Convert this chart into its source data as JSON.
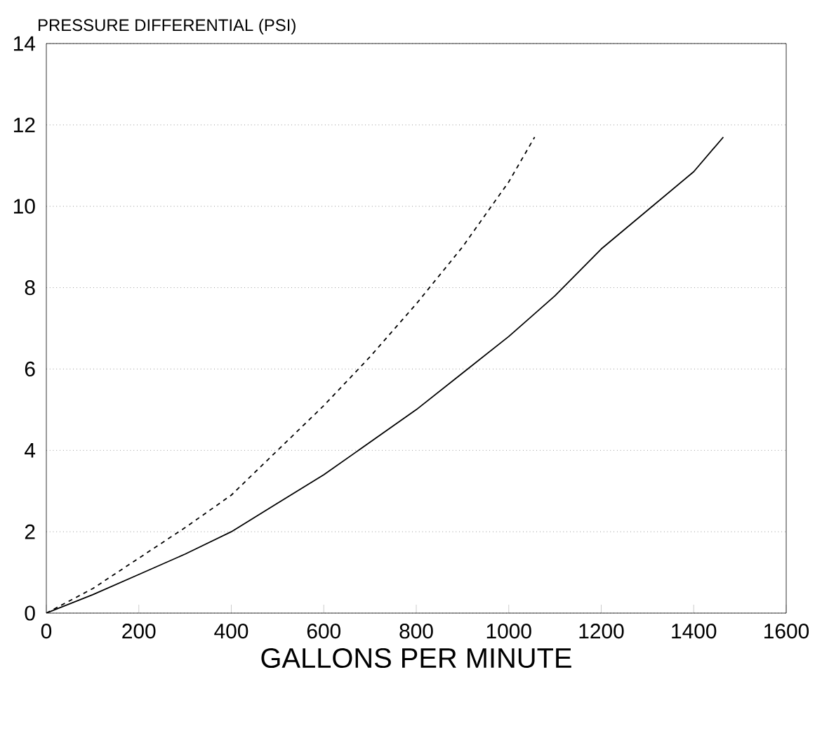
{
  "chart_data": {
    "type": "line",
    "ylabel": "PRESSURE DIFFERENTIAL (PSI)",
    "xlabel": "GALLONS PER MINUTE",
    "xlim": [
      0,
      1600
    ],
    "xticks": [
      0,
      200,
      400,
      600,
      800,
      1000,
      1200,
      1400,
      1600
    ],
    "ylim": [
      0,
      14
    ],
    "yticks": [
      0,
      2,
      4,
      6,
      8,
      10,
      12,
      14
    ],
    "grid": "y",
    "series": [
      {
        "color": "#000000",
        "line_style": "dashed",
        "x": [
          0,
          100,
          200,
          300,
          400,
          500,
          600,
          700,
          800,
          900,
          1000,
          1056
        ],
        "values": [
          0,
          0.6,
          1.35,
          2.1,
          2.9,
          4.0,
          5.1,
          6.3,
          7.6,
          9.0,
          10.6,
          11.7
        ]
      },
      {
        "color": "#000000",
        "line_style": "solid",
        "x": [
          0,
          100,
          200,
          300,
          400,
          500,
          600,
          700,
          800,
          900,
          1000,
          1100,
          1200,
          1300,
          1400,
          1464
        ],
        "values": [
          0,
          0.45,
          0.95,
          1.45,
          2.0,
          2.7,
          3.4,
          4.2,
          5.0,
          5.9,
          6.8,
          7.8,
          8.95,
          9.9,
          10.85,
          11.7
        ]
      }
    ]
  }
}
